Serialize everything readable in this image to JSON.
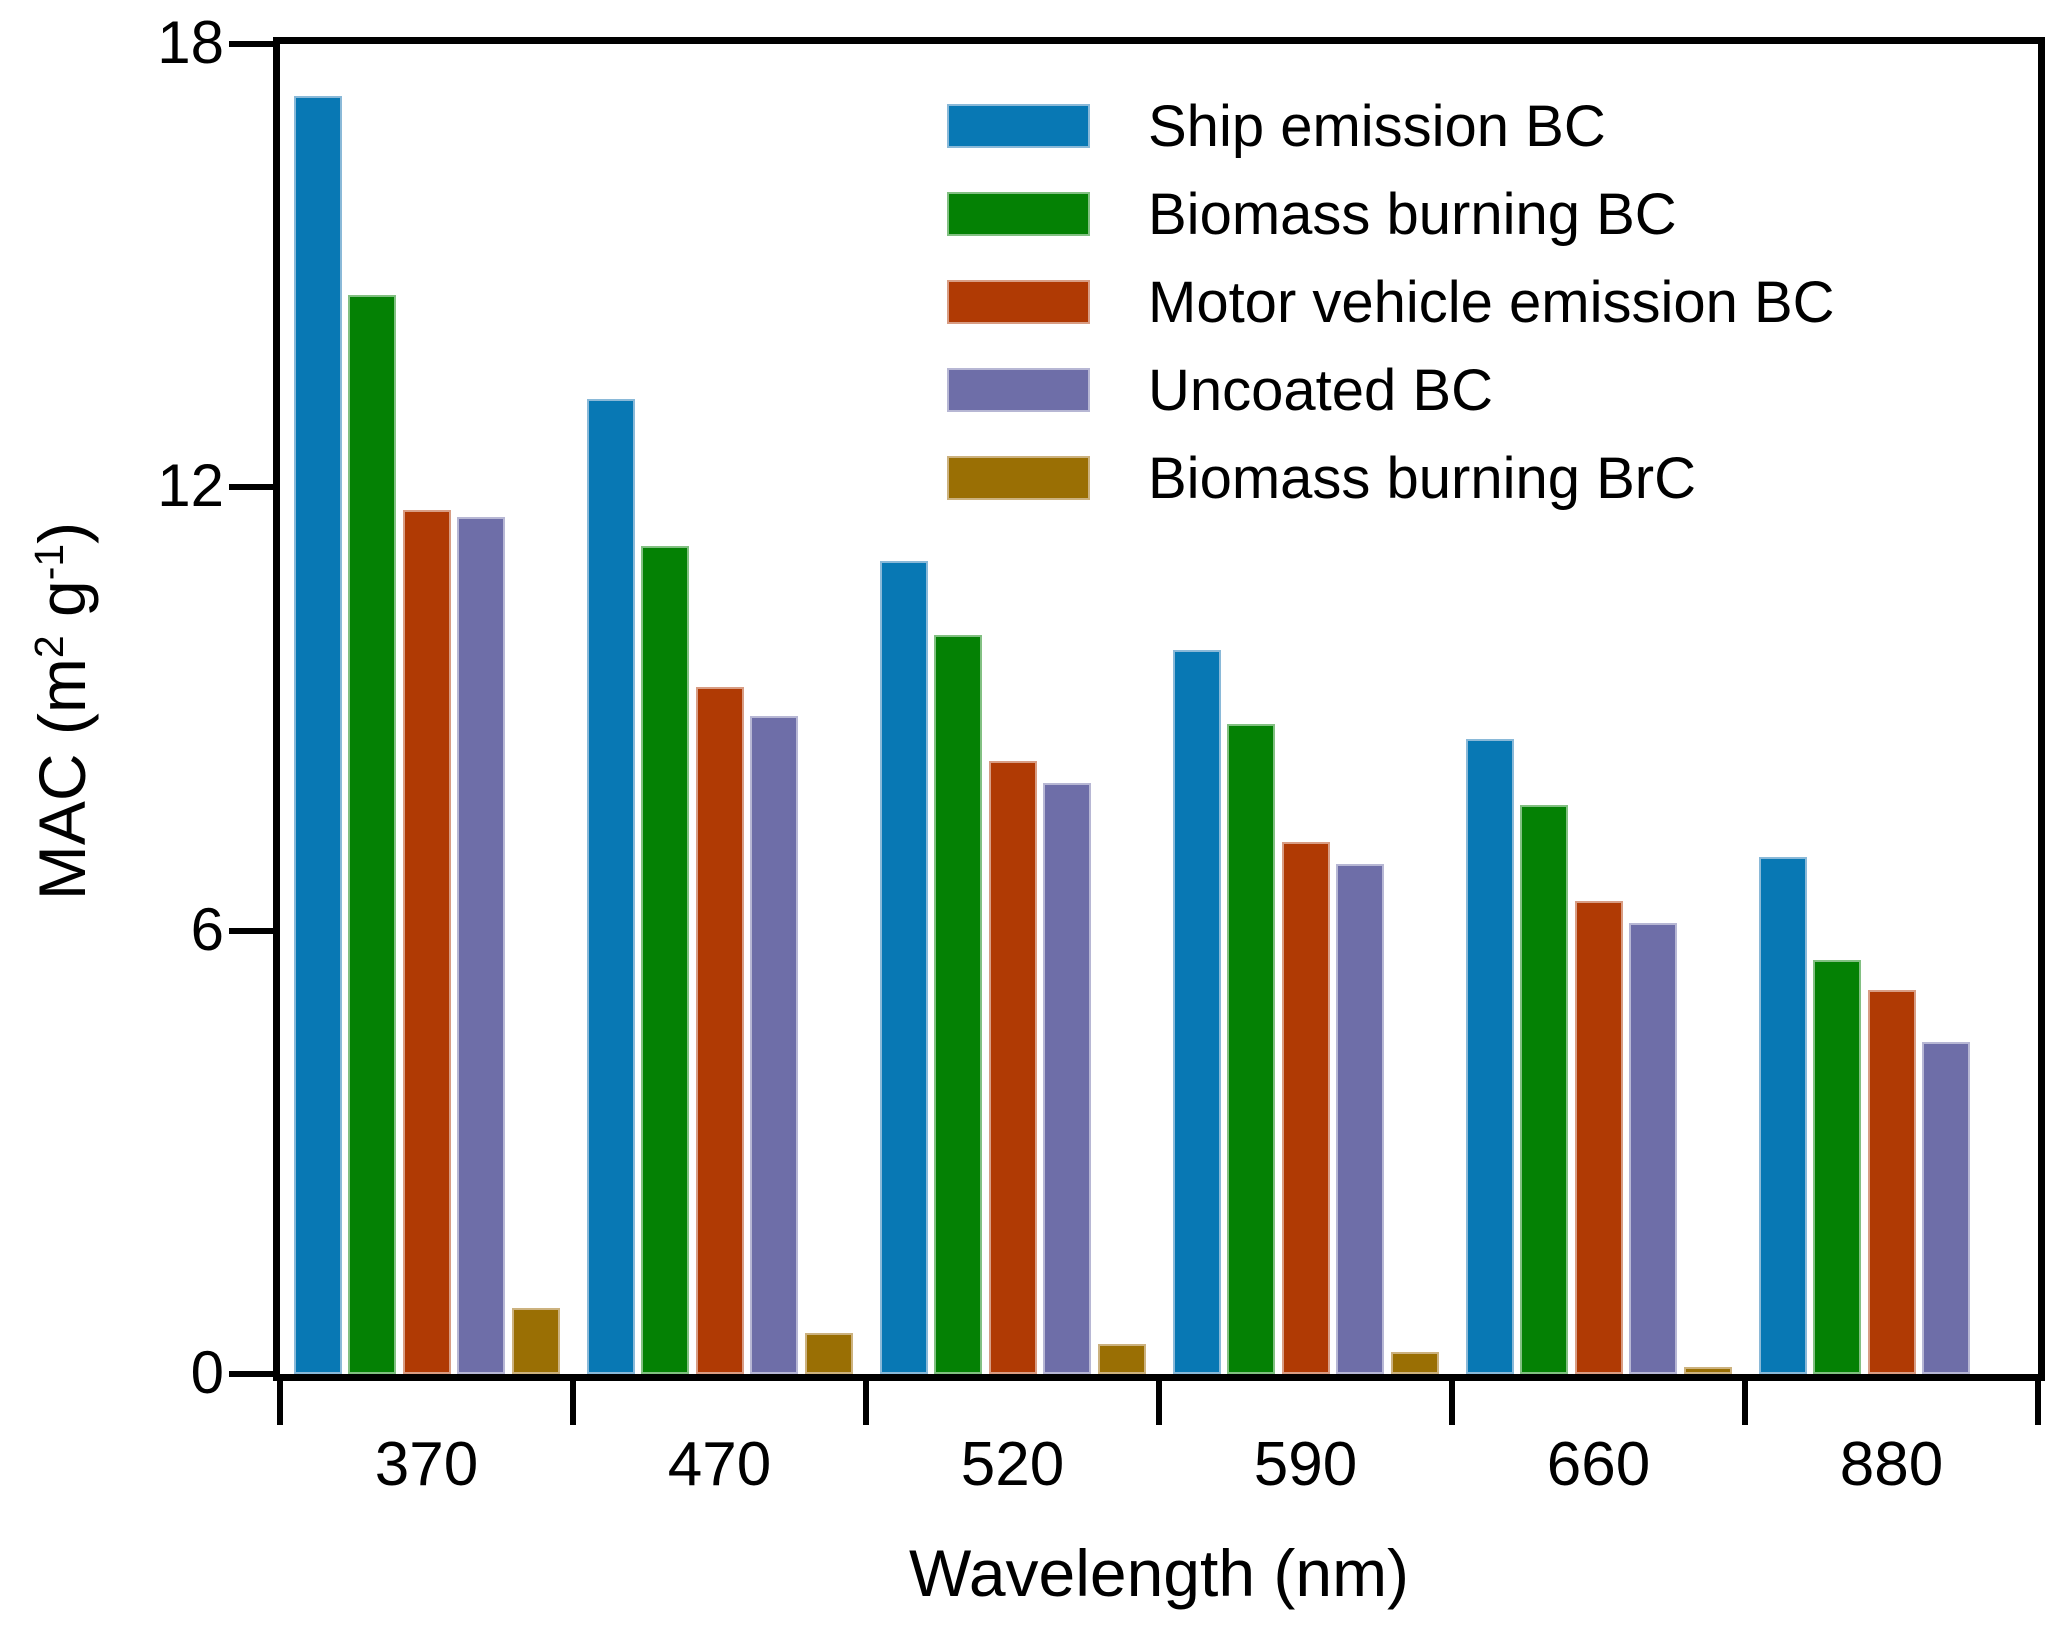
{
  "chart_data": {
    "type": "bar",
    "title": "",
    "xlabel": "Wavelength (nm)",
    "ylabel": {
      "pre": "MAC (m",
      "sup1": "2",
      "mid": " g",
      "sup2": "-1",
      "post": ")"
    },
    "categories": [
      "370",
      "470",
      "520",
      "590",
      "660",
      "880"
    ],
    "y_ticks": [
      0,
      6,
      12,
      18
    ],
    "ylim": [
      0,
      18
    ],
    "grid": false,
    "legend_position": "upper-right-inside",
    "axis_color": "#000000",
    "background_color": "#ffffff",
    "series": [
      {
        "name": "Ship emission BC",
        "color": "#0878b4",
        "edge_color": "#8ab9d8",
        "values": [
          17.3,
          13.2,
          11.0,
          9.8,
          8.6,
          7.0
        ]
      },
      {
        "name": "Biomass burning BC",
        "color": "#048104",
        "edge_color": "#82c082",
        "values": [
          14.6,
          11.2,
          10.0,
          8.8,
          7.7,
          5.6
        ]
      },
      {
        "name": "Motor vehicle emission BC",
        "color": "#b03a04",
        "edge_color": "#d89d84",
        "values": [
          11.7,
          9.3,
          8.3,
          7.2,
          6.4,
          5.2
        ]
      },
      {
        "name": "Uncoated BC",
        "color": "#6e6ea8",
        "edge_color": "#b7b7d4",
        "values": [
          11.6,
          8.9,
          8.0,
          6.9,
          6.1,
          4.5
        ]
      },
      {
        "name": "Biomass burning BrC",
        "color": "#9a6f04",
        "edge_color": "#ccb27f",
        "values": [
          0.9,
          0.55,
          0.4,
          0.3,
          0.1,
          null
        ]
      }
    ]
  }
}
